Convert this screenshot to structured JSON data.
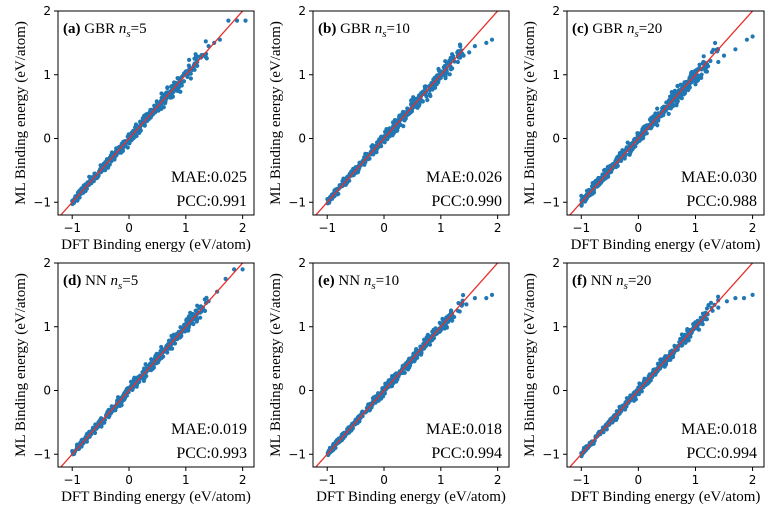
{
  "colors": {
    "points": "#1f77b4",
    "diagonal": "#e8302a",
    "axes": "#000000"
  },
  "chart_data": [
    {
      "type": "scatter",
      "letter": "(a)",
      "model": "GBR",
      "ns_value": "5",
      "mae": "MAE:0.025",
      "pcc": "PCC:0.991",
      "xlabel": "DFT Binding energy (eV/atom)",
      "ylabel": "ML Binding energy (eV/atom)",
      "xlim": [
        -1.25,
        2.2
      ],
      "ylim": [
        -1.2,
        2.0
      ],
      "xticks": [
        -1,
        0,
        1,
        2
      ],
      "yticks": [
        -1,
        0,
        1,
        2
      ],
      "diagonal": true,
      "grid": false,
      "spread": 0.09,
      "points": [
        [
          -1.0,
          -0.98
        ],
        [
          -0.9,
          -0.85
        ],
        [
          -0.8,
          -0.75
        ],
        [
          -0.7,
          -0.6
        ],
        [
          -0.6,
          -0.55
        ],
        [
          -0.5,
          -0.42
        ],
        [
          -0.4,
          -0.4
        ],
        [
          -0.3,
          -0.22
        ],
        [
          -0.2,
          -0.2
        ],
        [
          -0.1,
          -0.05
        ],
        [
          0.0,
          0.02
        ],
        [
          0.1,
          0.1
        ],
        [
          0.2,
          0.25
        ],
        [
          0.3,
          0.3
        ],
        [
          0.4,
          0.45
        ],
        [
          0.5,
          0.5
        ],
        [
          0.6,
          0.65
        ],
        [
          0.7,
          0.7
        ],
        [
          0.8,
          0.85
        ],
        [
          0.9,
          0.9
        ],
        [
          1.0,
          1.05
        ],
        [
          1.1,
          1.1
        ],
        [
          1.2,
          1.2
        ],
        [
          1.3,
          1.3
        ],
        [
          1.4,
          1.45
        ],
        [
          1.5,
          1.5
        ],
        [
          1.6,
          1.55
        ],
        [
          1.75,
          1.85
        ],
        [
          1.9,
          1.85
        ],
        [
          2.05,
          1.85
        ]
      ]
    },
    {
      "type": "scatter",
      "letter": "(b)",
      "model": "GBR",
      "ns_value": "10",
      "mae": "MAE:0.026",
      "pcc": "PCC:0.990",
      "xlabel": "",
      "ylabel": "ML Binding energy (eV/atom)",
      "xlim": [
        -1.25,
        2.2
      ],
      "ylim": [
        -1.2,
        2.0
      ],
      "xticks": [
        -1,
        0,
        1,
        2
      ],
      "yticks": [
        -1,
        0,
        1,
        2
      ],
      "diagonal": true,
      "grid": false,
      "spread": 0.09,
      "points": [
        [
          -0.95,
          -0.92
        ],
        [
          -0.85,
          -0.8
        ],
        [
          -0.7,
          -0.68
        ],
        [
          -0.6,
          -0.55
        ],
        [
          -0.5,
          -0.45
        ],
        [
          -0.4,
          -0.38
        ],
        [
          -0.3,
          -0.25
        ],
        [
          -0.2,
          -0.18
        ],
        [
          -0.1,
          -0.05
        ],
        [
          0.0,
          0.02
        ],
        [
          0.1,
          0.1
        ],
        [
          0.2,
          0.22
        ],
        [
          0.3,
          0.3
        ],
        [
          0.4,
          0.4
        ],
        [
          0.5,
          0.5
        ],
        [
          0.6,
          0.6
        ],
        [
          0.7,
          0.7
        ],
        [
          0.8,
          0.78
        ],
        [
          0.9,
          0.88
        ],
        [
          1.0,
          0.95
        ],
        [
          1.1,
          1.05
        ],
        [
          1.2,
          1.1
        ],
        [
          1.3,
          1.2
        ],
        [
          1.4,
          1.3
        ],
        [
          1.5,
          1.35
        ],
        [
          1.6,
          1.45
        ],
        [
          1.8,
          1.5
        ],
        [
          1.9,
          1.55
        ]
      ]
    },
    {
      "type": "scatter",
      "letter": "(c)",
      "model": "GBR",
      "ns_value": "20",
      "mae": "MAE:0.030",
      "pcc": "PCC:0.988",
      "xlabel": "DFT Binding energy (eV/atom)",
      "ylabel": "ML Binding energy (eV/atom)",
      "xlim": [
        -1.25,
        2.2
      ],
      "ylim": [
        -1.2,
        2.0
      ],
      "xticks": [
        -1,
        0,
        1,
        2
      ],
      "yticks": [
        -1,
        0,
        1,
        2
      ],
      "diagonal": true,
      "grid": false,
      "spread": 0.1,
      "points": [
        [
          -1.0,
          -0.9
        ],
        [
          -0.9,
          -0.82
        ],
        [
          -0.8,
          -0.7
        ],
        [
          -0.7,
          -0.62
        ],
        [
          -0.6,
          -0.5
        ],
        [
          -0.5,
          -0.45
        ],
        [
          -0.4,
          -0.35
        ],
        [
          -0.3,
          -0.25
        ],
        [
          -0.2,
          -0.15
        ],
        [
          -0.1,
          -0.08
        ],
        [
          0.0,
          0.02
        ],
        [
          0.1,
          0.1
        ],
        [
          0.2,
          0.18
        ],
        [
          0.3,
          0.3
        ],
        [
          0.4,
          0.35
        ],
        [
          0.5,
          0.48
        ],
        [
          0.6,
          0.55
        ],
        [
          0.7,
          0.65
        ],
        [
          0.8,
          0.72
        ],
        [
          0.9,
          0.8
        ],
        [
          1.0,
          0.85
        ],
        [
          1.1,
          0.95
        ],
        [
          1.2,
          1.05
        ],
        [
          1.4,
          1.2
        ],
        [
          1.5,
          1.3
        ],
        [
          1.7,
          1.4
        ],
        [
          1.9,
          1.55
        ],
        [
          2.0,
          1.6
        ]
      ]
    },
    {
      "type": "scatter",
      "letter": "(d)",
      "model": "NN",
      "ns_value": "5",
      "mae": "MAE:0.019",
      "pcc": "PCC:0.993",
      "xlabel": "DFT Binding energy (eV/atom)",
      "ylabel": "ML Binding energy (eV/atom)",
      "xlim": [
        -1.25,
        2.2
      ],
      "ylim": [
        -1.2,
        2.0
      ],
      "xticks": [
        -1,
        0,
        1,
        2
      ],
      "yticks": [
        -1,
        0,
        1,
        2
      ],
      "diagonal": true,
      "grid": false,
      "spread": 0.08,
      "points": [
        [
          -1.0,
          -0.95
        ],
        [
          -0.9,
          -0.88
        ],
        [
          -0.8,
          -0.78
        ],
        [
          -0.7,
          -0.65
        ],
        [
          -0.6,
          -0.58
        ],
        [
          -0.5,
          -0.45
        ],
        [
          -0.4,
          -0.38
        ],
        [
          -0.3,
          -0.28
        ],
        [
          -0.2,
          -0.15
        ],
        [
          -0.1,
          -0.08
        ],
        [
          0.0,
          0.02
        ],
        [
          0.1,
          0.12
        ],
        [
          0.2,
          0.2
        ],
        [
          0.3,
          0.32
        ],
        [
          0.4,
          0.4
        ],
        [
          0.5,
          0.52
        ],
        [
          0.6,
          0.6
        ],
        [
          0.7,
          0.72
        ],
        [
          0.8,
          0.8
        ],
        [
          0.9,
          0.92
        ],
        [
          1.0,
          1.0
        ],
        [
          1.1,
          1.12
        ],
        [
          1.2,
          1.2
        ],
        [
          1.3,
          1.3
        ],
        [
          1.4,
          1.4
        ],
        [
          1.55,
          1.55
        ],
        [
          1.7,
          1.75
        ],
        [
          1.85,
          1.9
        ],
        [
          2.0,
          1.9
        ]
      ]
    },
    {
      "type": "scatter",
      "letter": "(e)",
      "model": "NN",
      "ns_value": "10",
      "mae": "MAE:0.018",
      "pcc": "PCC:0.994",
      "xlabel": "DFT Binding energy (eV/atom)",
      "ylabel": "ML Binding energy (eV/atom)",
      "xlim": [
        -1.25,
        2.2
      ],
      "ylim": [
        -1.2,
        2.0
      ],
      "xticks": [
        -1,
        0,
        1,
        2
      ],
      "yticks": [
        -1,
        0,
        1,
        2
      ],
      "diagonal": true,
      "grid": false,
      "spread": 0.07,
      "points": [
        [
          -0.95,
          -0.9
        ],
        [
          -0.85,
          -0.82
        ],
        [
          -0.75,
          -0.72
        ],
        [
          -0.6,
          -0.58
        ],
        [
          -0.5,
          -0.48
        ],
        [
          -0.4,
          -0.38
        ],
        [
          -0.3,
          -0.28
        ],
        [
          -0.2,
          -0.18
        ],
        [
          -0.1,
          -0.08
        ],
        [
          0.0,
          0.0
        ],
        [
          0.1,
          0.1
        ],
        [
          0.2,
          0.2
        ],
        [
          0.3,
          0.3
        ],
        [
          0.4,
          0.4
        ],
        [
          0.5,
          0.5
        ],
        [
          0.6,
          0.6
        ],
        [
          0.7,
          0.7
        ],
        [
          0.8,
          0.8
        ],
        [
          0.9,
          0.9
        ],
        [
          1.0,
          0.98
        ],
        [
          1.1,
          1.08
        ],
        [
          1.2,
          1.15
        ],
        [
          1.3,
          1.25
        ],
        [
          1.45,
          1.35
        ],
        [
          1.6,
          1.45
        ],
        [
          1.8,
          1.45
        ],
        [
          1.9,
          1.5
        ]
      ]
    },
    {
      "type": "scatter",
      "letter": "(f)",
      "model": "NN",
      "ns_value": "20",
      "mae": "MAE:0.018",
      "pcc": "PCC:0.994",
      "xlabel": "DFT Binding energy (eV/atom)",
      "ylabel": "ML Binding energy (eV/atom)",
      "xlim": [
        -1.25,
        2.2
      ],
      "ylim": [
        -1.2,
        2.0
      ],
      "xticks": [
        -1,
        0,
        1,
        2
      ],
      "yticks": [
        -1,
        0,
        1,
        2
      ],
      "diagonal": true,
      "grid": false,
      "spread": 0.07,
      "points": [
        [
          -0.95,
          -0.9
        ],
        [
          -0.85,
          -0.82
        ],
        [
          -0.75,
          -0.72
        ],
        [
          -0.6,
          -0.58
        ],
        [
          -0.5,
          -0.48
        ],
        [
          -0.4,
          -0.38
        ],
        [
          -0.3,
          -0.28
        ],
        [
          -0.2,
          -0.18
        ],
        [
          -0.1,
          -0.08
        ],
        [
          0.0,
          0.0
        ],
        [
          0.1,
          0.1
        ],
        [
          0.2,
          0.2
        ],
        [
          0.3,
          0.3
        ],
        [
          0.4,
          0.4
        ],
        [
          0.5,
          0.5
        ],
        [
          0.6,
          0.6
        ],
        [
          0.7,
          0.7
        ],
        [
          0.8,
          0.8
        ],
        [
          0.9,
          0.9
        ],
        [
          1.0,
          0.98
        ],
        [
          1.1,
          1.08
        ],
        [
          1.2,
          1.12
        ],
        [
          1.3,
          1.25
        ],
        [
          1.4,
          1.3
        ],
        [
          1.55,
          1.4
        ],
        [
          1.7,
          1.45
        ],
        [
          1.85,
          1.45
        ],
        [
          2.0,
          1.5
        ]
      ]
    }
  ]
}
